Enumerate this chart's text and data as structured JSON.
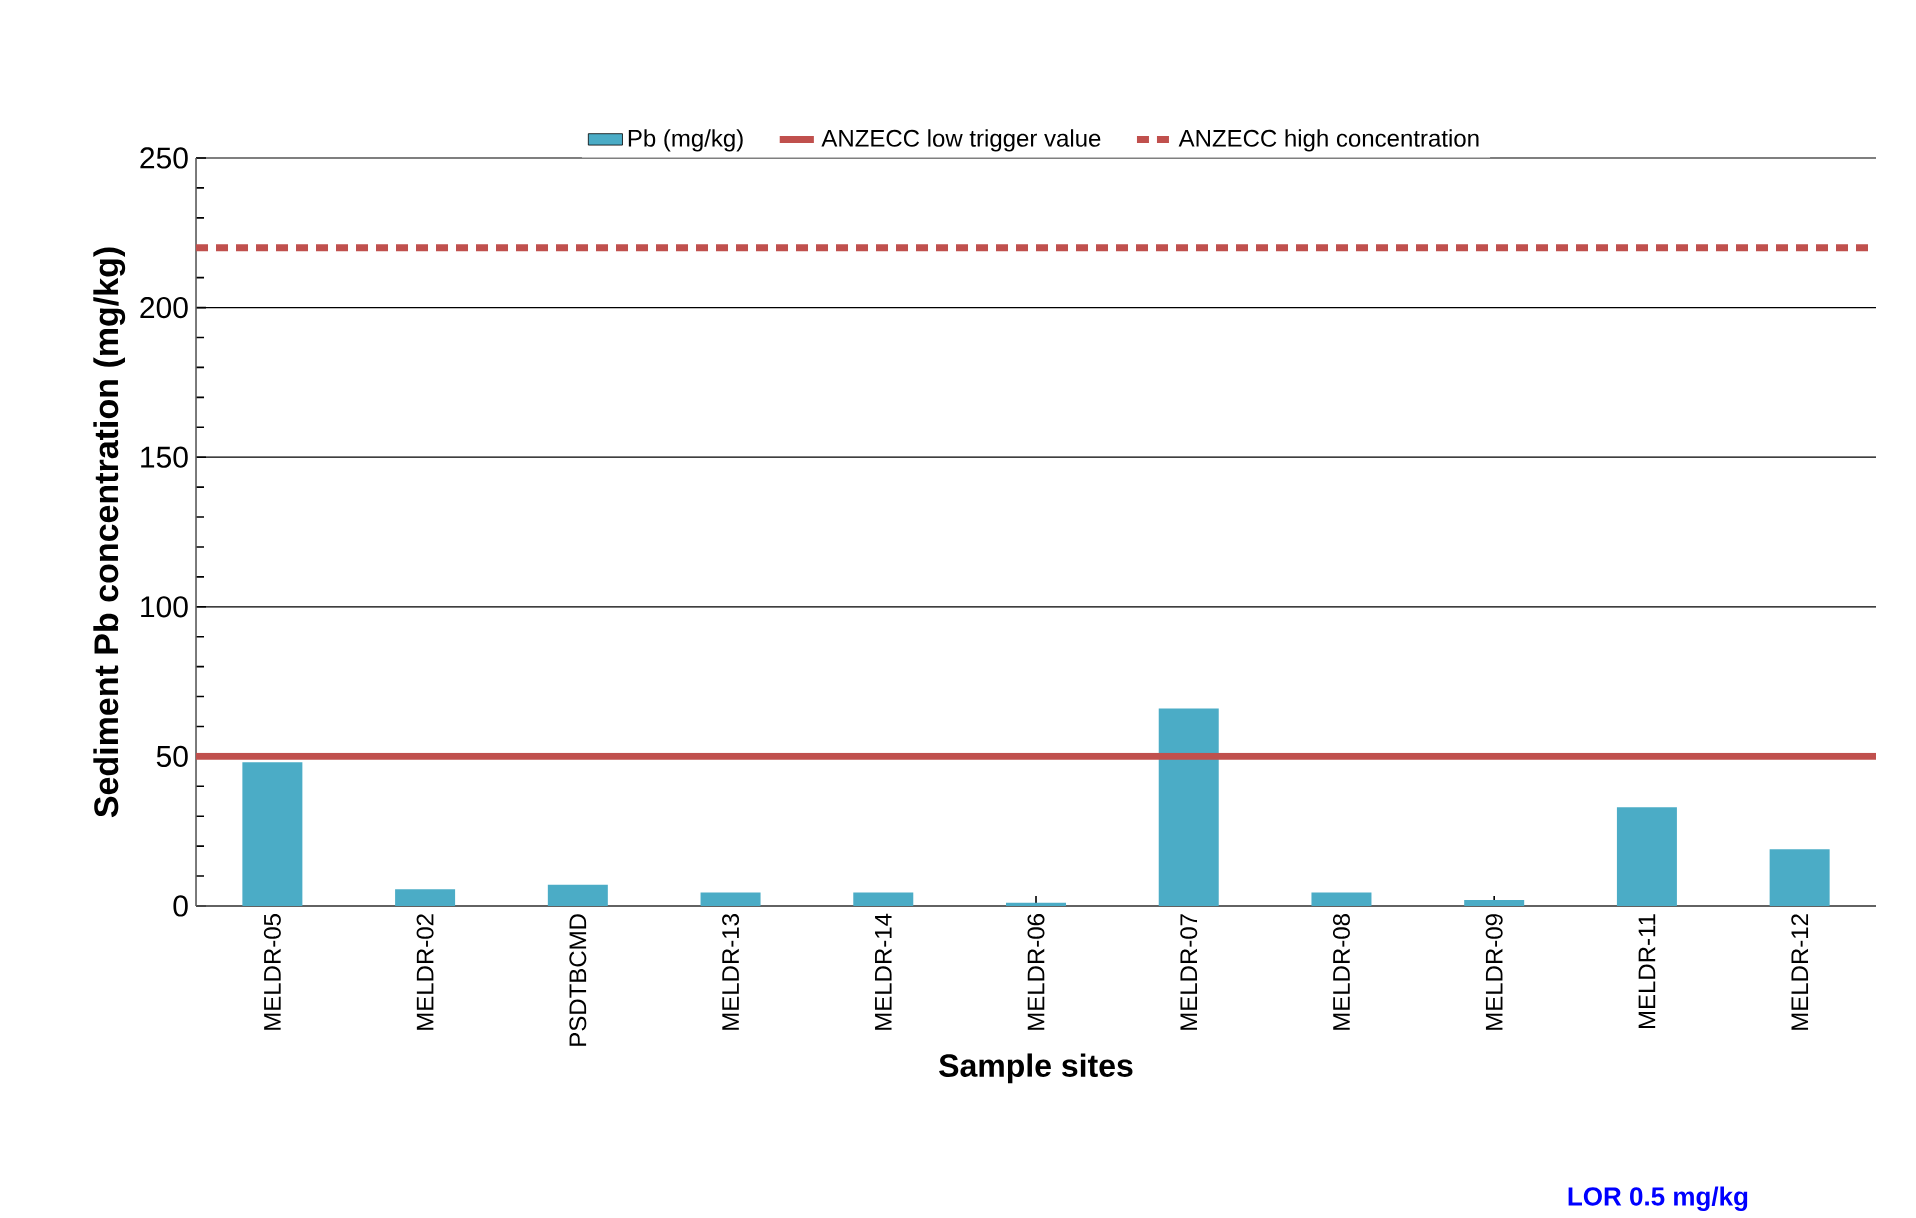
{
  "chart_data": {
    "type": "bar",
    "xlabel": "Sample sites",
    "ylabel": "Sediment Pb concentration (mg/kg)",
    "categories": [
      "MELDR-05",
      "MELDR-02",
      "PSDTBCMD",
      "MELDR-13",
      "MELDR-14",
      "MELDR-06",
      "MELDR-07",
      "MELDR-08",
      "MELDR-09",
      "MELDR-11",
      "MELDR-12"
    ],
    "series": [
      {
        "name": "Pb (mg/kg)",
        "color": "#4bacc6",
        "values": [
          48,
          5.6,
          7.1,
          4.5,
          4.5,
          1.1,
          66,
          4.5,
          2,
          33,
          19
        ]
      }
    ],
    "ref_lines": [
      {
        "axis": "y",
        "value": 50,
        "label": "ANZECC low trigger value",
        "color": "#c0504d",
        "line_style": "solid"
      },
      {
        "axis": "y",
        "value": 220,
        "label": "ANZECC high concentration",
        "color": "#c0504d",
        "line_style": "dashed"
      }
    ],
    "ylim": [
      0,
      250
    ],
    "yticks": [
      0,
      50,
      100,
      150,
      200,
      250
    ],
    "grid": "y",
    "legend": "top",
    "annotations": [
      "LOR 0.5 mg/kg"
    ]
  }
}
